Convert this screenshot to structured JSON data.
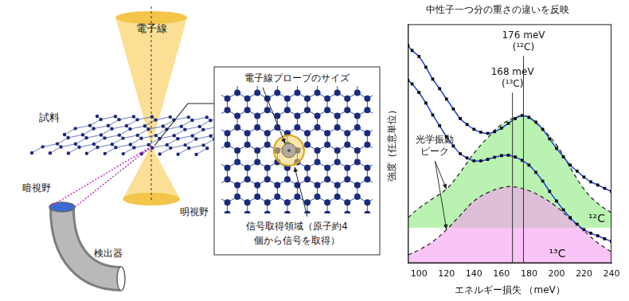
{
  "diagram": {
    "beam": "電子線",
    "sample": "試料",
    "dark_field": "暗視野",
    "bright_field": "明視野",
    "detector": "検出器",
    "inset": {
      "title": "電子線プローブのサイズ",
      "caption": [
        "信号取得領域（原子約4",
        "個から信号を取得）"
      ]
    }
  },
  "chart_data": {
    "type": "line",
    "title": "中性子一つ分の重さの違いを反映",
    "x_label": "エネルギー損失 （meV）",
    "y_label": "強度（任意単位）",
    "xlim": [
      92,
      240
    ],
    "xticks": [
      100,
      120,
      140,
      160,
      180,
      200,
      220,
      240
    ],
    "ylim": [
      0,
      100
    ],
    "tick_labels": "x",
    "grid": false,
    "series": [
      {
        "name": "¹²C",
        "type": "area",
        "color": "#b9f2b1",
        "line_style": "dashed",
        "baseline": 14.8,
        "x": [
          92,
          100,
          110,
          120,
          130,
          140,
          150,
          160,
          170,
          176,
          180,
          190,
          200,
          210,
          220,
          230,
          240
        ],
        "values": [
          19,
          23,
          27,
          31,
          38,
          46,
          52.5,
          58,
          61,
          61.6,
          61,
          56,
          49.5,
          40,
          31,
          25,
          21
        ]
      },
      {
        "name": "¹³C",
        "type": "area",
        "color": "#f59cf0",
        "line_style": "dashed",
        "baseline": 0,
        "x": [
          92,
          100,
          110,
          120,
          130,
          140,
          150,
          160,
          168,
          180,
          190,
          200,
          210,
          220,
          230,
          240
        ],
        "values": [
          3.4,
          5.5,
          9,
          14,
          20,
          26,
          29.5,
          31.5,
          32,
          30.3,
          27.5,
          23.6,
          18.5,
          13.5,
          8.5,
          4.7
        ]
      },
      {
        "type": "scatter",
        "marker": "square",
        "color": "#000000",
        "x": [
          92,
          95,
          100,
          105,
          110,
          115,
          120,
          125,
          130,
          135,
          140,
          145,
          150,
          155,
          160,
          165,
          170,
          175,
          180,
          185,
          190,
          195,
          200,
          205,
          210,
          215,
          220,
          225,
          230,
          235,
          240
        ],
        "values": [
          91,
          89,
          86.5,
          82,
          77,
          73,
          68.7,
          64.5,
          60.5,
          58,
          56,
          54.8,
          54.3,
          55,
          56.5,
          58.5,
          60.5,
          61.8,
          61,
          59,
          56,
          52,
          48,
          44.5,
          41,
          38.5,
          36,
          34,
          32.7,
          31.3,
          30
        ]
      },
      {
        "type": "line",
        "color": "#1f3fe0",
        "line_style": "solid",
        "x": [
          92,
          95,
          100,
          105,
          110,
          115,
          120,
          125,
          130,
          135,
          140,
          145,
          150,
          155,
          160,
          165,
          170,
          175,
          180,
          185,
          190,
          195,
          200,
          205,
          210,
          215,
          220,
          225,
          230,
          235,
          240
        ],
        "values": [
          91,
          89,
          86.5,
          82,
          77,
          73,
          68.7,
          64.5,
          60.5,
          58,
          56,
          54.8,
          54.3,
          55,
          56.5,
          58.5,
          60.5,
          61.8,
          61,
          59,
          56,
          52,
          48,
          44.5,
          41,
          38.5,
          36,
          34,
          32.7,
          31.3,
          30
        ]
      },
      {
        "type": "scatter",
        "marker": "square",
        "color": "#000000",
        "x": [
          92,
          95,
          100,
          105,
          110,
          115,
          120,
          125,
          130,
          135,
          140,
          145,
          150,
          155,
          160,
          165,
          170,
          175,
          180,
          185,
          190,
          195,
          200,
          205,
          210,
          215,
          220,
          225,
          230,
          235,
          240
        ],
        "values": [
          76.4,
          75,
          71.4,
          67,
          62,
          57.5,
          52.9,
          49,
          45.8,
          44,
          42.8,
          42.8,
          43.4,
          44.3,
          45,
          45.2,
          44.4,
          43,
          41,
          38,
          34.3,
          30,
          26,
          22.3,
          19,
          16.3,
          14,
          12.5,
          11.4,
          10.2,
          9.1
        ]
      },
      {
        "type": "line",
        "color": "#1f3fe0",
        "line_style": "solid",
        "x": [
          92,
          95,
          100,
          105,
          110,
          115,
          120,
          125,
          130,
          135,
          140,
          145,
          150,
          155,
          160,
          165,
          170,
          175,
          180,
          185,
          190,
          195,
          200,
          205,
          210,
          215,
          220,
          225,
          230,
          235,
          240
        ],
        "values": [
          76.4,
          75,
          71.4,
          67,
          62,
          57.5,
          52.9,
          49,
          45.8,
          44,
          42.8,
          42.8,
          43.4,
          44.3,
          45,
          45.2,
          44.4,
          43,
          41,
          38,
          34.3,
          30,
          26,
          22.3,
          19,
          16.3,
          14,
          12.5,
          11.4,
          10.2,
          9.1
        ]
      }
    ],
    "annotations": [
      {
        "x": 176,
        "text": [
          "176 meV",
          "(¹²C)"
        ]
      },
      {
        "x": 168,
        "text": [
          "168 meV",
          "(¹³C)"
        ]
      },
      {
        "text": [
          "光学振動",
          "ピーク"
        ]
      }
    ]
  }
}
